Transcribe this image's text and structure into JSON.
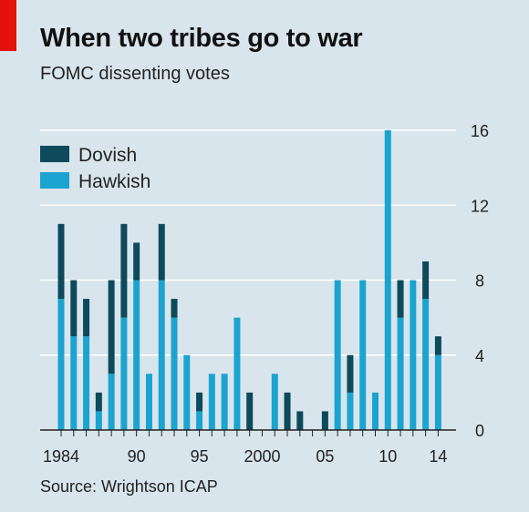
{
  "title": "When two tribes go to war",
  "subtitle": "FOMC dissenting votes",
  "source": "Source: Wrightson ICAP",
  "colors": {
    "dovish": "#0c4a5c",
    "hawkish": "#1ba4cf",
    "accent": "#e3120b",
    "background": "#d9e5ec",
    "grid": "#ffffff"
  },
  "chart_data": {
    "type": "bar",
    "stacked": true,
    "x": [
      1984,
      1985,
      1986,
      1987,
      1988,
      1989,
      1990,
      1991,
      1992,
      1993,
      1994,
      1995,
      1996,
      1997,
      1998,
      1999,
      2000,
      2001,
      2002,
      2003,
      2004,
      2005,
      2006,
      2007,
      2008,
      2009,
      2010,
      2011,
      2012,
      2013,
      2014
    ],
    "series": [
      {
        "name": "Hawkish",
        "values": [
          7,
          5,
          5,
          1,
          3,
          6,
          8,
          3,
          8,
          6,
          4,
          1,
          3,
          3,
          6,
          0,
          0,
          3,
          0,
          0,
          0,
          0,
          8,
          2,
          8,
          2,
          16,
          6,
          8,
          7,
          4
        ]
      },
      {
        "name": "Dovish",
        "values": [
          4,
          3,
          2,
          1,
          5,
          5,
          2,
          0,
          3,
          1,
          0,
          1,
          0,
          0,
          0,
          2,
          0,
          0,
          2,
          1,
          0,
          1,
          0,
          2,
          0,
          0,
          0,
          2,
          0,
          2,
          1
        ]
      }
    ],
    "x_tick_labels": [
      {
        "year": 1984,
        "label": "1984"
      },
      {
        "year": 1990,
        "label": "90"
      },
      {
        "year": 1995,
        "label": "95"
      },
      {
        "year": 2000,
        "label": "2000"
      },
      {
        "year": 2005,
        "label": "05"
      },
      {
        "year": 2010,
        "label": "10"
      },
      {
        "year": 2014,
        "label": "14"
      }
    ],
    "y_ticks": [
      0,
      4,
      8,
      12,
      16
    ],
    "ylim": [
      0,
      16
    ],
    "y_axis_side": "right",
    "grid": true,
    "legend": {
      "position": "top-left",
      "entries": [
        "Dovish",
        "Hawkish"
      ]
    }
  }
}
